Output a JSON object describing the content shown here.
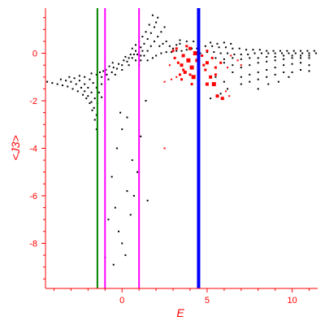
{
  "chart_data": {
    "type": "scatter",
    "title": "",
    "xlabel": "E",
    "ylabel": "<J3>",
    "xlim": [
      -4.5,
      11.5
    ],
    "ylim": [
      -9.9,
      1.9
    ],
    "x_ticks": [
      0,
      5,
      10
    ],
    "y_ticks": [
      0,
      -2,
      -4,
      -6,
      -8
    ],
    "grid": false,
    "axis_color": "#ff0000",
    "vertical_lines": [
      {
        "x": -1.45,
        "color": "#008000"
      },
      {
        "x": -1.0,
        "color": "#ff00ff"
      },
      {
        "x": 1.0,
        "color": "#ff00ff"
      },
      {
        "x": 4.5,
        "color": "#0000ff"
      }
    ],
    "series": [
      {
        "color": "#000000",
        "points": [
          [
            -4.4,
            -1.2
          ],
          [
            -4.1,
            -1.25
          ],
          [
            -3.8,
            -1.3
          ],
          [
            -3.5,
            -1.35
          ],
          [
            -3.2,
            -1.4
          ],
          [
            -2.9,
            -1.5
          ],
          [
            -2.6,
            -1.6
          ],
          [
            -2.3,
            -1.75
          ],
          [
            -2.1,
            -1.9
          ],
          [
            -1.9,
            -2.1
          ],
          [
            -1.75,
            -2.4
          ],
          [
            -1.6,
            -2.8
          ],
          [
            -1.5,
            -3.2
          ],
          [
            -3.6,
            -1.1
          ],
          [
            -3.3,
            -1.15
          ],
          [
            -3.0,
            -1.2
          ],
          [
            -2.7,
            -1.3
          ],
          [
            -2.4,
            -1.45
          ],
          [
            -2.2,
            -1.6
          ],
          [
            -2.0,
            -1.8
          ],
          [
            -1.8,
            -2.05
          ],
          [
            -1.65,
            -2.3
          ],
          [
            -1.5,
            -2.6
          ],
          [
            -3.1,
            -1.0
          ],
          [
            -2.8,
            -1.05
          ],
          [
            -2.5,
            -1.15
          ],
          [
            -2.2,
            -1.3
          ],
          [
            -2.0,
            -1.45
          ],
          [
            -1.8,
            -1.65
          ],
          [
            -1.6,
            -1.9
          ],
          [
            -1.45,
            -2.1
          ],
          [
            -2.5,
            -0.95
          ],
          [
            -2.2,
            -1.0
          ],
          [
            -1.9,
            -1.1
          ],
          [
            -1.7,
            -1.25
          ],
          [
            -1.5,
            -1.45
          ],
          [
            -1.35,
            -1.65
          ],
          [
            -1.2,
            -1.85
          ],
          [
            -1.8,
            -0.85
          ],
          [
            -1.5,
            -0.9
          ],
          [
            -1.2,
            -1.0
          ],
          [
            -0.9,
            -0.9
          ],
          [
            -0.6,
            -0.8
          ],
          [
            -0.3,
            -0.65
          ],
          [
            0.0,
            -0.5
          ],
          [
            0.3,
            -0.35
          ],
          [
            0.6,
            -0.2
          ],
          [
            0.9,
            -0.05
          ],
          [
            1.2,
            0.1
          ],
          [
            -1.2,
            -1.3
          ],
          [
            -0.8,
            -1.1
          ],
          [
            -0.4,
            -0.9
          ],
          [
            0.0,
            -0.7
          ],
          [
            0.4,
            -0.5
          ],
          [
            0.8,
            -0.3
          ],
          [
            1.1,
            -0.1
          ],
          [
            -0.5,
            -0.6
          ],
          [
            -0.2,
            -0.45
          ],
          [
            0.1,
            -0.3
          ],
          [
            0.4,
            -0.2
          ],
          [
            0.7,
            -0.05
          ],
          [
            1.0,
            0.05
          ],
          [
            -1.3,
            -0.8
          ],
          [
            -1.1,
            -0.75
          ],
          [
            -0.95,
            -0.7
          ],
          [
            -0.75,
            -0.55
          ],
          [
            -0.55,
            -0.4
          ],
          [
            0.2,
            -0.15
          ],
          [
            0.5,
            -0.05
          ],
          [
            0.8,
            0.1
          ],
          [
            1.1,
            0.25
          ],
          [
            1.3,
            0.4
          ],
          [
            1.5,
            0.6
          ],
          [
            1.7,
            0.85
          ],
          [
            1.9,
            1.1
          ],
          [
            2.0,
            1.3
          ],
          [
            2.1,
            1.5
          ],
          [
            1.8,
            1.6
          ],
          [
            1.6,
            1.2
          ],
          [
            1.4,
            0.9
          ],
          [
            1.2,
            0.7
          ],
          [
            1.0,
            0.5
          ],
          [
            0.8,
            0.35
          ],
          [
            0.6,
            0.2
          ],
          [
            1.0,
            -0.5
          ],
          [
            1.1,
            -0.3
          ],
          [
            1.3,
            -0.1
          ],
          [
            1.5,
            0.1
          ],
          [
            1.7,
            0.3
          ],
          [
            1.9,
            0.5
          ],
          [
            2.1,
            0.7
          ],
          [
            2.3,
            0.9
          ],
          [
            2.5,
            1.1
          ],
          [
            2.2,
            0.3
          ],
          [
            2.4,
            0.4
          ],
          [
            2.6,
            0.5
          ],
          [
            2.8,
            0.3
          ],
          [
            3.0,
            0.2
          ],
          [
            3.2,
            0.35
          ],
          [
            3.4,
            0.4
          ],
          [
            1.5,
            -0.3
          ],
          [
            1.8,
            -0.2
          ],
          [
            2.0,
            -0.1
          ],
          [
            2.3,
            0.0
          ],
          [
            2.6,
            0.05
          ],
          [
            2.9,
            0.05
          ],
          [
            3.2,
            0.1
          ],
          [
            3.5,
            0.1
          ],
          [
            3.8,
            0.15
          ],
          [
            4.1,
            0.2
          ],
          [
            4.4,
            0.2
          ],
          [
            4.5,
            0.3
          ],
          [
            4.9,
            0.3
          ],
          [
            5.3,
            0.3
          ],
          [
            5.7,
            0.25
          ],
          [
            6.1,
            0.25
          ],
          [
            6.5,
            0.2
          ],
          [
            6.9,
            0.2
          ],
          [
            7.3,
            0.15
          ],
          [
            7.7,
            0.15
          ],
          [
            8.1,
            0.15
          ],
          [
            8.5,
            0.1
          ],
          [
            8.9,
            0.1
          ],
          [
            9.3,
            0.1
          ],
          [
            9.7,
            0.1
          ],
          [
            10.1,
            0.1
          ],
          [
            10.5,
            0.1
          ],
          [
            10.9,
            0.1
          ],
          [
            11.3,
            0.1
          ],
          [
            4.6,
            0.0
          ],
          [
            5.0,
            0.05
          ],
          [
            5.4,
            0.05
          ],
          [
            5.8,
            0.0
          ],
          [
            6.2,
            0.0
          ],
          [
            6.6,
            -0.05
          ],
          [
            7.0,
            -0.05
          ],
          [
            7.4,
            -0.05
          ],
          [
            7.8,
            0.0
          ],
          [
            8.2,
            0.0
          ],
          [
            8.6,
            0.0
          ],
          [
            9.0,
            0.0
          ],
          [
            9.4,
            0.0
          ],
          [
            9.8,
            0.0
          ],
          [
            10.2,
            0.0
          ],
          [
            10.6,
            0.0
          ],
          [
            11.0,
            0.0
          ],
          [
            11.4,
            0.0
          ],
          [
            5.5,
            -0.2
          ],
          [
            6.0,
            -0.25
          ],
          [
            6.5,
            -0.2
          ],
          [
            7.0,
            -0.25
          ],
          [
            7.5,
            -0.2
          ],
          [
            8.0,
            -0.2
          ],
          [
            8.5,
            -0.15
          ],
          [
            9.0,
            -0.15
          ],
          [
            9.5,
            -0.1
          ],
          [
            10.0,
            -0.1
          ],
          [
            10.5,
            -0.1
          ],
          [
            11.0,
            -0.1
          ],
          [
            6.0,
            -0.4
          ],
          [
            6.5,
            -0.5
          ],
          [
            7.0,
            -0.6
          ],
          [
            7.5,
            -0.5
          ],
          [
            8.0,
            -0.4
          ],
          [
            8.5,
            -0.35
          ],
          [
            9.0,
            -0.3
          ],
          [
            9.5,
            -0.25
          ],
          [
            10.0,
            -0.2
          ],
          [
            10.5,
            -0.2
          ],
          [
            11.0,
            -0.2
          ],
          [
            6.5,
            -0.8
          ],
          [
            7.0,
            -1.0
          ],
          [
            7.5,
            -0.9
          ],
          [
            8.0,
            -0.8
          ],
          [
            8.5,
            -0.7
          ],
          [
            9.0,
            -0.6
          ],
          [
            9.5,
            -0.5
          ],
          [
            10.0,
            -0.45
          ],
          [
            10.5,
            -0.4
          ],
          [
            11.0,
            -0.5
          ],
          [
            7.0,
            -1.3
          ],
          [
            7.5,
            -1.2
          ],
          [
            8.0,
            -1.1
          ],
          [
            8.5,
            -1.0
          ],
          [
            9.0,
            -0.9
          ],
          [
            9.5,
            -0.8
          ],
          [
            10.0,
            -0.8
          ],
          [
            10.5,
            -0.7
          ],
          [
            11.0,
            -0.75
          ],
          [
            5.5,
            -1.0
          ],
          [
            6.0,
            -1.2
          ],
          [
            6.2,
            -1.5
          ],
          [
            5.8,
            -1.7
          ],
          [
            5.2,
            -1.9
          ],
          [
            8.0,
            -1.5
          ],
          [
            8.6,
            -1.3
          ],
          [
            9.2,
            -1.2
          ],
          [
            9.8,
            -1.0
          ],
          [
            3.4,
            0.55
          ],
          [
            3.8,
            0.5
          ],
          [
            4.2,
            0.5
          ],
          [
            5.2,
            0.45
          ],
          [
            5.6,
            0.4
          ],
          [
            6.0,
            0.45
          ],
          [
            6.4,
            0.4
          ],
          [
            0.0,
            -3.2
          ],
          [
            -0.3,
            -4.0
          ],
          [
            -0.6,
            -5.2
          ],
          [
            -0.4,
            -6.5
          ],
          [
            0.3,
            -5.8
          ],
          [
            0.5,
            -6.8
          ],
          [
            -0.8,
            -7.0
          ],
          [
            0.0,
            -8.0
          ],
          [
            -0.5,
            -8.9
          ],
          [
            -1.0,
            -8.6
          ],
          [
            0.2,
            -8.5
          ],
          [
            -0.2,
            -7.5
          ],
          [
            0.7,
            -6.0
          ],
          [
            0.9,
            -5.0
          ],
          [
            0.6,
            -4.5
          ],
          [
            1.1,
            -3.5
          ],
          [
            1.4,
            -2.0
          ],
          [
            1.5,
            -6.2
          ],
          [
            -0.1,
            -2.5
          ],
          [
            0.3,
            -2.7
          ]
        ]
      },
      {
        "color": "#ff0000",
        "points": [
          [
            3.6,
            -0.1,
            4
          ],
          [
            3.9,
            -0.3,
            5
          ],
          [
            4.1,
            -0.6,
            5
          ],
          [
            3.7,
            -0.8,
            4
          ],
          [
            4.3,
            0.0,
            5
          ],
          [
            4.0,
            0.2,
            4
          ],
          [
            3.8,
            0.3,
            3
          ],
          [
            4.4,
            -0.3,
            4
          ],
          [
            3.5,
            -0.5,
            4
          ],
          [
            4.2,
            -1.0,
            5
          ],
          [
            4.0,
            -0.9,
            3
          ],
          [
            5.0,
            -0.4,
            4
          ],
          [
            5.2,
            -1.0,
            4
          ],
          [
            5.4,
            -1.3,
            5
          ],
          [
            5.0,
            -1.3,
            4
          ],
          [
            5.6,
            -1.8,
            4
          ],
          [
            5.9,
            -1.9,
            4
          ],
          [
            5.5,
            -0.9,
            3
          ],
          [
            5.3,
            -0.2,
            3
          ],
          [
            5.8,
            -0.4,
            3
          ],
          [
            5.5,
            -0.6,
            3
          ],
          [
            5.0,
            0.1,
            3
          ],
          [
            3.3,
            -0.4,
            3
          ],
          [
            3.1,
            -0.2,
            3
          ],
          [
            2.8,
            -0.5,
            2
          ],
          [
            2.9,
            -1.1,
            2
          ],
          [
            3.0,
            0.1,
            3
          ],
          [
            3.2,
            0.2,
            3
          ],
          [
            3.5,
            -1.1,
            3
          ],
          [
            3.4,
            -0.9,
            3
          ],
          [
            3.2,
            -1.0,
            2
          ],
          [
            2.5,
            -1.2,
            2
          ],
          [
            3.6,
            -0.7,
            3
          ],
          [
            4.7,
            -0.1,
            3
          ],
          [
            4.8,
            -0.5,
            3
          ],
          [
            4.9,
            -0.7,
            3
          ],
          [
            6.4,
            -0.1,
            2
          ],
          [
            6.8,
            -0.3,
            2
          ],
          [
            6.2,
            -0.6,
            2
          ],
          [
            7.0,
            -0.5,
            2
          ],
          [
            6.1,
            -1.6,
            2
          ],
          [
            6.3,
            -1.8,
            2
          ],
          [
            2.5,
            -4.0,
            2
          ],
          [
            4.1,
            -1.3,
            3
          ]
        ]
      }
    ]
  }
}
